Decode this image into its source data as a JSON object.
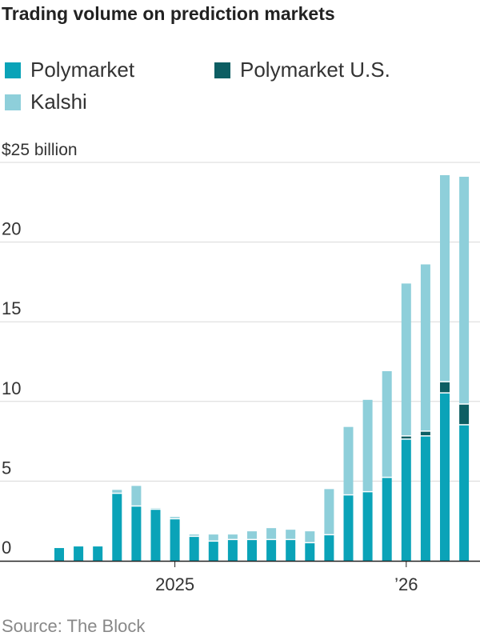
{
  "title": "Trading volume on prediction markets",
  "source": "Source: The Block",
  "colors": {
    "polymarket": "#0aa3b8",
    "polymarket_us": "#0d5e63",
    "kalshi": "#8ecfda",
    "grid": "#d8d8d8",
    "axis": "#222222"
  },
  "chart_data": {
    "type": "bar",
    "stacked": true,
    "title": "Trading volume on prediction markets",
    "ylabel": "$25 billion",
    "ylim": [
      0,
      25
    ],
    "yticks": [
      {
        "value": 0,
        "label": "0"
      },
      {
        "value": 5,
        "label": "5"
      },
      {
        "value": 10,
        "label": "10"
      },
      {
        "value": 15,
        "label": "15"
      },
      {
        "value": 20,
        "label": "20"
      },
      {
        "value": 25,
        "label": "$25 billion"
      }
    ],
    "xtick_labels": [
      {
        "index": 6,
        "label": "2025"
      },
      {
        "index": 18,
        "label": "’26"
      }
    ],
    "grid": true,
    "legend": "top",
    "series": [
      {
        "name": "Polymarket",
        "color": "#0aa3b8",
        "values": [
          0.8,
          0.9,
          0.9,
          4.2,
          3.4,
          3.2,
          2.6,
          1.5,
          1.2,
          1.3,
          1.3,
          1.3,
          1.3,
          1.1,
          1.6,
          4.1,
          4.3,
          5.2,
          7.6,
          7.8,
          10.5,
          8.5
        ]
      },
      {
        "name": "Polymarket U.S.",
        "color": "#0d5e63",
        "values": [
          0,
          0,
          0,
          0,
          0,
          0,
          0,
          0,
          0,
          0,
          0,
          0,
          0,
          0,
          0,
          0,
          0,
          0,
          0.2,
          0.3,
          0.7,
          1.3
        ]
      },
      {
        "name": "Kalshi",
        "color": "#8ecfda",
        "values": [
          0,
          0,
          0,
          0.25,
          1.3,
          0.1,
          0.15,
          0.15,
          0.45,
          0.35,
          0.55,
          0.75,
          0.65,
          0.75,
          2.9,
          4.3,
          5.8,
          6.7,
          9.6,
          10.5,
          13.0,
          14.3
        ]
      }
    ]
  },
  "legend": [
    {
      "label": "Polymarket",
      "color": "#0aa3b8"
    },
    {
      "label": "Polymarket U.S.",
      "color": "#0d5e63"
    },
    {
      "label": "Kalshi",
      "color": "#8ecfda"
    }
  ]
}
